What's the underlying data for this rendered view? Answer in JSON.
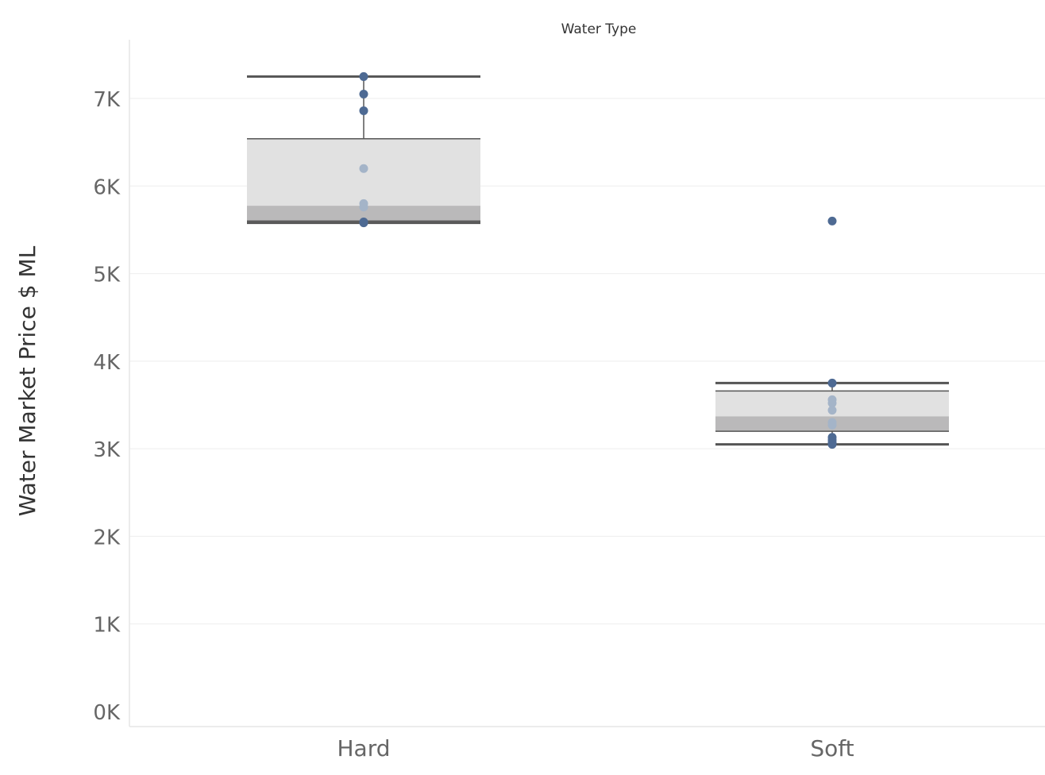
{
  "chart_data": {
    "type": "box",
    "header": "Water Type",
    "ylabel": "Water Market Price $ ML",
    "ylim": [
      0,
      7600
    ],
    "yticks": [
      0,
      1000,
      2000,
      3000,
      4000,
      5000,
      6000,
      7000
    ],
    "ytick_labels": [
      "0K",
      "1K",
      "2K",
      "3K",
      "4K",
      "5K",
      "6K",
      "7K"
    ],
    "grid": true,
    "categories": [
      "Hard",
      "Soft"
    ],
    "boxes": [
      {
        "category": "Hard",
        "whisker_low": 5580,
        "q1": 5600,
        "median": 5775,
        "q3": 6540,
        "whisker_high": 7250,
        "points": [
          7250,
          7050,
          6860,
          6200,
          5800,
          5760,
          5590,
          5580
        ],
        "outliers": []
      },
      {
        "category": "Soft",
        "whisker_low": 3050,
        "q1": 3200,
        "median": 3370,
        "q3": 3660,
        "whisker_high": 3750,
        "points": [
          3750,
          3560,
          3520,
          3440,
          3300,
          3270,
          3130,
          3100,
          3070,
          3050
        ],
        "outliers": [
          5600
        ]
      }
    ],
    "colors": {
      "box_upper": "#e1e1e1",
      "box_lower": "#bab9ba",
      "whisker": "#555555",
      "point_dark": "#4e6a93",
      "point_light": "#a4b4c8"
    }
  }
}
